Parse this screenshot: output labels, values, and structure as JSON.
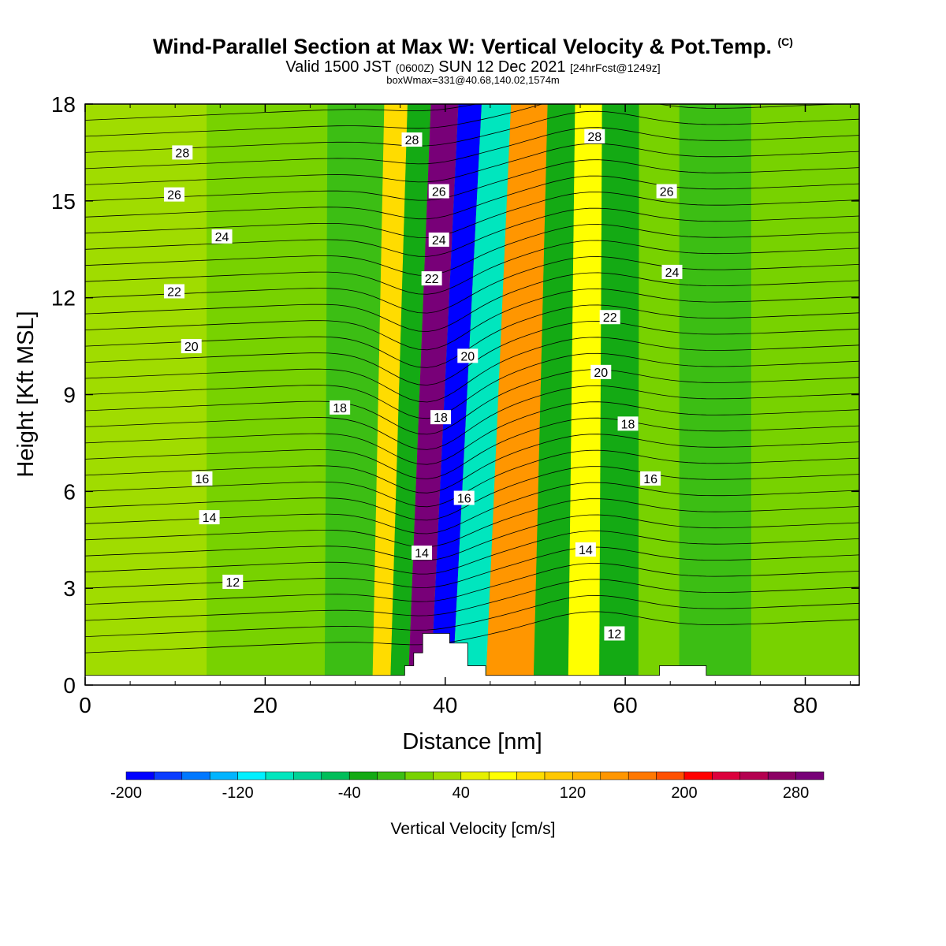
{
  "title": {
    "main": "Wind-Parallel Section at Max W: Vertical Velocity & Pot.Temp.",
    "copyright": "(C)",
    "valid_a": "Valid 1500 JST",
    "valid_z": "(0600Z)",
    "valid_b": "SUN 12 Dec 2021",
    "fcst": "[24hrFcst@1249z]",
    "box": "boxWmax=331@40.68,140.02,1574m"
  },
  "chart_data": {
    "type": "heatmap",
    "xlabel": "Distance [nm]",
    "ylabel": "Height [Kft MSL]",
    "xlim": [
      0,
      86
    ],
    "ylim": [
      0,
      18
    ],
    "x_ticks": [
      "0",
      "20",
      "40",
      "60",
      "80"
    ],
    "y_ticks": [
      "0",
      "3",
      "6",
      "9",
      "12",
      "15",
      "18"
    ],
    "colorbar": {
      "label": "Vertical Velocity [cm/s]",
      "tick_labels": [
        "-200",
        "-120",
        "-40",
        "40",
        "120",
        "200",
        "280"
      ],
      "levels": [
        -200,
        -180,
        -160,
        -140,
        -120,
        -100,
        -80,
        -60,
        -40,
        -20,
        0,
        20,
        40,
        60,
        80,
        100,
        120,
        140,
        160,
        180,
        200,
        220,
        240,
        260,
        280,
        300
      ],
      "colors": [
        "#0000ff",
        "#0a3cff",
        "#0078ff",
        "#00b4ff",
        "#00f0ff",
        "#00e6be",
        "#00d296",
        "#00be5a",
        "#14aa14",
        "#3cbe14",
        "#78d200",
        "#a0dc00",
        "#e6f000",
        "#ffff00",
        "#ffdc00",
        "#ffc800",
        "#ffb400",
        "#ff9600",
        "#ff7800",
        "#ff5000",
        "#ff0000",
        "#dc003c",
        "#b40050",
        "#8c0064",
        "#780078"
      ]
    },
    "vertical_velocity_bands": [
      {
        "x_center": 5,
        "w": 20
      },
      {
        "x_center": 22,
        "w": 15
      },
      {
        "x_center": 31.5,
        "w": -15
      },
      {
        "x_center": 33.5,
        "w": 90
      },
      {
        "x_center": 36,
        "w": -30
      },
      {
        "x_center": 38,
        "w": 280
      },
      {
        "x_center": 41.5,
        "w": -200
      },
      {
        "x_center": 43,
        "w": -100
      },
      {
        "x_center": 48.5,
        "w": 140
      },
      {
        "x_center": 52.5,
        "w": -40
      },
      {
        "x_center": 55.5,
        "w": 70
      },
      {
        "x_center": 59,
        "w": -25
      },
      {
        "x_center": 64,
        "w": 5
      },
      {
        "x_center": 68,
        "w": -20
      },
      {
        "x_center": 80,
        "w": 15
      }
    ],
    "potential_temperature_labels": [
      {
        "label": "28",
        "x": 10.8,
        "y": 16.5
      },
      {
        "label": "26",
        "x": 9.9,
        "y": 15.2
      },
      {
        "label": "24",
        "x": 15.2,
        "y": 13.9
      },
      {
        "label": "22",
        "x": 9.9,
        "y": 12.2
      },
      {
        "label": "20",
        "x": 11.8,
        "y": 10.5
      },
      {
        "label": "18",
        "x": 28.3,
        "y": 8.6
      },
      {
        "label": "16",
        "x": 13.0,
        "y": 6.4
      },
      {
        "label": "14",
        "x": 13.8,
        "y": 5.2
      },
      {
        "label": "12",
        "x": 16.4,
        "y": 3.2
      },
      {
        "label": "28",
        "x": 36.3,
        "y": 16.9
      },
      {
        "label": "26",
        "x": 39.3,
        "y": 15.3
      },
      {
        "label": "24",
        "x": 39.3,
        "y": 13.8
      },
      {
        "label": "22",
        "x": 38.5,
        "y": 12.6
      },
      {
        "label": "20",
        "x": 42.5,
        "y": 10.2
      },
      {
        "label": "18",
        "x": 39.5,
        "y": 8.3
      },
      {
        "label": "16",
        "x": 42.1,
        "y": 5.8
      },
      {
        "label": "14",
        "x": 37.4,
        "y": 4.1
      },
      {
        "label": "28",
        "x": 56.6,
        "y": 17.0
      },
      {
        "label": "26",
        "x": 64.6,
        "y": 15.3
      },
      {
        "label": "24",
        "x": 65.2,
        "y": 12.8
      },
      {
        "label": "22",
        "x": 58.3,
        "y": 11.4
      },
      {
        "label": "20",
        "x": 57.3,
        "y": 9.7
      },
      {
        "label": "18",
        "x": 60.3,
        "y": 8.1
      },
      {
        "label": "16",
        "x": 62.8,
        "y": 6.4
      },
      {
        "label": "14",
        "x": 55.6,
        "y": 4.2
      },
      {
        "label": "12",
        "x": 58.8,
        "y": 1.6
      }
    ],
    "terrain": [
      [
        0,
        0.3
      ],
      [
        35.5,
        0.3
      ],
      [
        35.5,
        0.6
      ],
      [
        36.5,
        0.6
      ],
      [
        36.5,
        1.0
      ],
      [
        37.5,
        1.0
      ],
      [
        37.5,
        1.6
      ],
      [
        40.5,
        1.6
      ],
      [
        40.5,
        1.3
      ],
      [
        42.5,
        1.3
      ],
      [
        42.5,
        0.6
      ],
      [
        44.5,
        0.6
      ],
      [
        44.5,
        0.3
      ],
      [
        63.8,
        0.3
      ],
      [
        63.8,
        0.6
      ],
      [
        69,
        0.6
      ],
      [
        69,
        0.3
      ],
      [
        86,
        0.3
      ]
    ]
  }
}
